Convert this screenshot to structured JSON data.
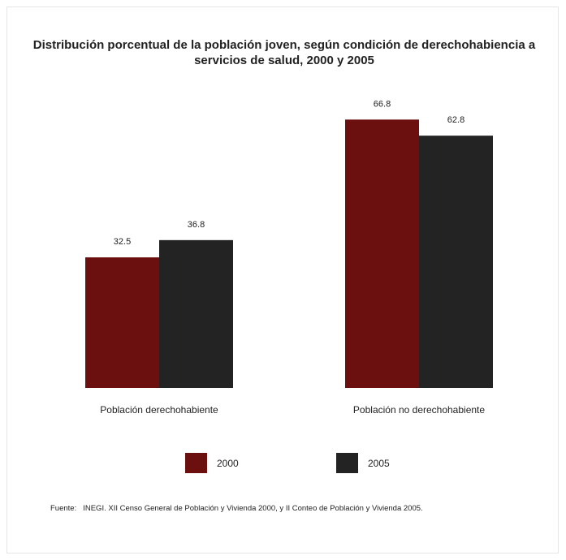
{
  "chart_data": {
    "type": "bar",
    "title": "Distribución porcentual de la población joven, según condición de derechohabiencia a servicios de salud, 2000 y 2005",
    "categories": [
      "Población derechohabiente",
      "Población no derechohabiente"
    ],
    "series": [
      {
        "name": "2000",
        "values": [
          32.5,
          66.8
        ],
        "color": "#6b0f0f"
      },
      {
        "name": "2005",
        "values": [
          36.8,
          62.8
        ],
        "color": "#232323"
      }
    ],
    "value_labels": [
      [
        "32.5",
        "66.8"
      ],
      [
        "36.8",
        "62.8"
      ]
    ],
    "xlabel": "",
    "ylabel": "",
    "ylim": [
      0,
      70
    ],
    "grid": false,
    "legend": "bottom"
  },
  "legend": {
    "items": [
      {
        "label": "2000",
        "color": "#6b0f0f"
      },
      {
        "label": "2005",
        "color": "#232323"
      }
    ]
  },
  "source": {
    "label": "Fuente:",
    "text": "INEGI. XII Censo General de Población y Vivienda 2000, y II Conteo de Población y Vivienda 2005."
  }
}
